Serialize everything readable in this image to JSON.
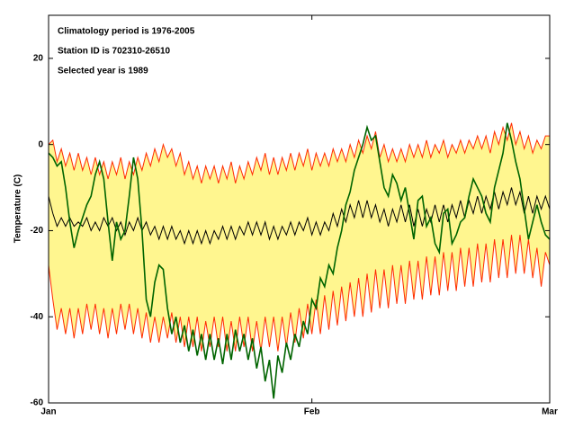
{
  "chart_data": {
    "type": "band-line",
    "annotations": [
      "Climatology period is 1976-2005",
      "Station ID is 702310-26510",
      "Selected year is 1989"
    ],
    "ylabel": "Temperature (C)",
    "xlim": [
      0,
      59
    ],
    "xticks": [
      {
        "value": 0,
        "label": "Jan"
      },
      {
        "value": 31,
        "label": "Feb"
      },
      {
        "value": 59,
        "label": "Mar"
      }
    ],
    "ylim": [
      -60,
      30
    ],
    "yticks": [
      -60,
      -40,
      -20,
      0,
      20
    ],
    "band_color": "#fff68f",
    "x": [
      0,
      0.5,
      1,
      1.5,
      2,
      2.5,
      3,
      3.5,
      4,
      4.5,
      5,
      5.5,
      6,
      6.5,
      7,
      7.5,
      8,
      8.5,
      9,
      9.5,
      10,
      10.5,
      11,
      11.5,
      12,
      12.5,
      13,
      13.5,
      14,
      14.5,
      15,
      15.5,
      16,
      16.5,
      17,
      17.5,
      18,
      18.5,
      19,
      19.5,
      20,
      20.5,
      21,
      21.5,
      22,
      22.5,
      23,
      23.5,
      24,
      24.5,
      25,
      25.5,
      26,
      26.5,
      27,
      27.5,
      28,
      28.5,
      29,
      29.5,
      30,
      30.5,
      31,
      31.5,
      32,
      32.5,
      33,
      33.5,
      34,
      34.5,
      35,
      35.5,
      36,
      36.5,
      37,
      37.5,
      38,
      38.5,
      39,
      39.5,
      40,
      40.5,
      41,
      41.5,
      42,
      42.5,
      43,
      43.5,
      44,
      44.5,
      45,
      45.5,
      46,
      46.5,
      47,
      47.5,
      48,
      48.5,
      49,
      49.5,
      50,
      50.5,
      51,
      51.5,
      52,
      52.5,
      53,
      53.5,
      54,
      54.5,
      55,
      55.5,
      56,
      56.5,
      57,
      57.5,
      58,
      58.5,
      59
    ],
    "series": [
      {
        "color": "#ff2a00",
        "values": [
          0,
          1,
          -4,
          -1,
          -5,
          -2,
          -6,
          -2,
          -6,
          -3,
          -7,
          -3,
          -7,
          -4,
          -8,
          -4,
          -7,
          -3,
          -8,
          -4,
          -7,
          -3,
          -6,
          -2,
          -5,
          -1,
          -4,
          0,
          -3,
          -1,
          -5,
          -2,
          -7,
          -4,
          -8,
          -5,
          -9,
          -5,
          -8,
          -5,
          -9,
          -5,
          -8,
          -4,
          -9,
          -5,
          -8,
          -4,
          -7,
          -3,
          -6,
          -2,
          -7,
          -3,
          -7,
          -3,
          -6,
          -2,
          -6,
          -2,
          -5,
          -1,
          -6,
          -2,
          -5,
          -2,
          -5,
          -1,
          -4,
          -1,
          -4,
          0,
          -3,
          1,
          -2,
          2,
          -1,
          3,
          -3,
          0,
          -4,
          -1,
          -4,
          -1,
          -4,
          0,
          -3,
          0,
          -3,
          1,
          -3,
          0,
          -2,
          1,
          -3,
          0,
          -2,
          1,
          -2,
          1,
          -1,
          2,
          -1,
          2,
          -2,
          3,
          0,
          4,
          1,
          5,
          0,
          3,
          -1,
          2,
          -2,
          1,
          -1,
          2,
          2
        ]
      },
      {
        "color": "#ff2a00",
        "values": [
          -28,
          -36,
          -43,
          -38,
          -44,
          -38,
          -45,
          -38,
          -44,
          -37,
          -43,
          -37,
          -44,
          -38,
          -45,
          -38,
          -44,
          -37,
          -43,
          -37,
          -44,
          -38,
          -45,
          -39,
          -46,
          -40,
          -46,
          -40,
          -45,
          -39,
          -46,
          -40,
          -47,
          -40,
          -47,
          -40,
          -48,
          -41,
          -47,
          -40,
          -47,
          -40,
          -48,
          -41,
          -48,
          -40,
          -47,
          -40,
          -48,
          -41,
          -48,
          -40,
          -47,
          -40,
          -48,
          -40,
          -47,
          -39,
          -46,
          -38,
          -45,
          -37,
          -44,
          -36,
          -44,
          -35,
          -43,
          -34,
          -42,
          -33,
          -41,
          -32,
          -40,
          -31,
          -40,
          -30,
          -39,
          -29,
          -38,
          -29,
          -38,
          -28,
          -37,
          -28,
          -37,
          -27,
          -36,
          -27,
          -36,
          -26,
          -35,
          -26,
          -35,
          -25,
          -34,
          -25,
          -34,
          -24,
          -33,
          -24,
          -33,
          -23,
          -32,
          -23,
          -32,
          -22,
          -31,
          -22,
          -31,
          -21,
          -30,
          -21,
          -30,
          -22,
          -31,
          -24,
          -33,
          -25,
          -28
        ]
      },
      {
        "color": "#000000",
        "values": [
          -12,
          -16,
          -19,
          -17,
          -19,
          -17,
          -19,
          -18,
          -19,
          -17,
          -20,
          -18,
          -20,
          -17,
          -19,
          -17,
          -20,
          -18,
          -21,
          -18,
          -20,
          -17,
          -20,
          -18,
          -21,
          -19,
          -22,
          -19,
          -22,
          -19,
          -22,
          -20,
          -23,
          -20,
          -23,
          -20,
          -23,
          -20,
          -23,
          -20,
          -22,
          -19,
          -22,
          -19,
          -22,
          -19,
          -21,
          -18,
          -21,
          -18,
          -21,
          -18,
          -22,
          -19,
          -22,
          -19,
          -21,
          -18,
          -21,
          -18,
          -20,
          -17,
          -21,
          -18,
          -21,
          -18,
          -20,
          -16,
          -19,
          -15,
          -18,
          -14,
          -17,
          -13,
          -17,
          -13,
          -17,
          -14,
          -18,
          -15,
          -19,
          -15,
          -18,
          -14,
          -18,
          -14,
          -19,
          -15,
          -19,
          -15,
          -18,
          -14,
          -18,
          -14,
          -18,
          -14,
          -17,
          -13,
          -17,
          -13,
          -16,
          -12,
          -16,
          -12,
          -15,
          -11,
          -15,
          -11,
          -14,
          -10,
          -14,
          -11,
          -16,
          -12,
          -16,
          -12,
          -15,
          -12,
          -15
        ]
      },
      {
        "color": "#006400",
        "values": [
          -2,
          -3,
          -5,
          -4,
          -10,
          -18,
          -24,
          -20,
          -17,
          -14,
          -12,
          -7,
          -4,
          -8,
          -18,
          -27,
          -18,
          -22,
          -20,
          -12,
          -3,
          -8,
          -20,
          -36,
          -40,
          -32,
          -28,
          -29,
          -38,
          -44,
          -40,
          -46,
          -42,
          -48,
          -43,
          -49,
          -44,
          -50,
          -44,
          -50,
          -45,
          -51,
          -44,
          -50,
          -43,
          -48,
          -44,
          -50,
          -45,
          -52,
          -47,
          -55,
          -50,
          -59,
          -49,
          -53,
          -46,
          -50,
          -44,
          -47,
          -41,
          -44,
          -36,
          -38,
          -31,
          -33,
          -28,
          -30,
          -24,
          -20,
          -14,
          -11,
          -6,
          -3,
          0,
          4,
          1,
          2,
          -4,
          -10,
          -12,
          -7,
          -9,
          -13,
          -10,
          -16,
          -22,
          -13,
          -12,
          -19,
          -17,
          -23,
          -25,
          -16,
          -15,
          -23,
          -21,
          -18,
          -17,
          -12,
          -8,
          -10,
          -12,
          -16,
          -18,
          -10,
          -6,
          -2,
          5,
          1,
          -4,
          -8,
          -15,
          -22,
          -18,
          -14,
          -18,
          -21,
          -22
        ]
      }
    ]
  }
}
